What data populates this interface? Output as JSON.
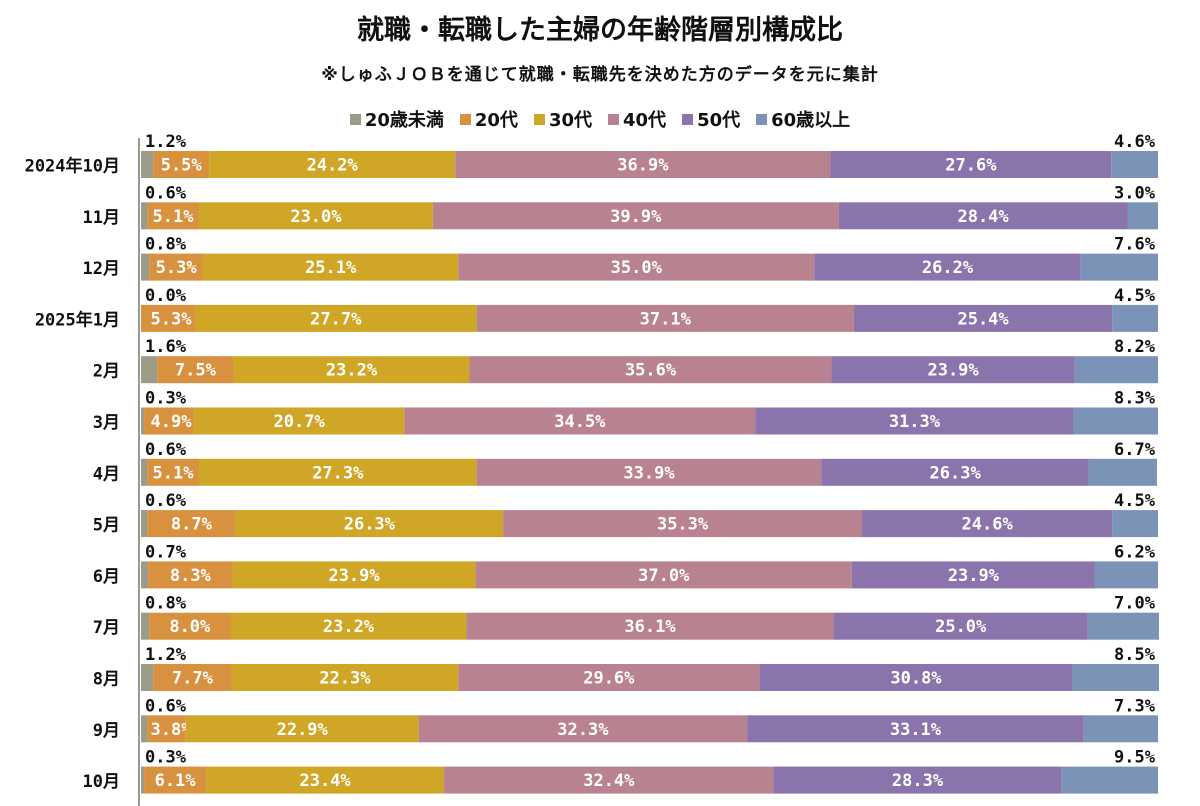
{
  "chart_data": {
    "type": "bar",
    "orientation": "horizontal",
    "stacked": true,
    "percent": true,
    "title": "就職・転職した主婦の年齢階層別構成比",
    "subtitle": "※しゅふＪＯＢを通じて就職・転職先を決めた方のデータを元に集計",
    "legend_position": "top",
    "grid": false,
    "xlim": [
      0,
      100
    ],
    "categories": [
      "2024年10月",
      "11月",
      "12月",
      "2025年1月",
      "2月",
      "3月",
      "4月",
      "5月",
      "6月",
      "7月",
      "8月",
      "9月",
      "10月"
    ],
    "series": [
      {
        "name": "20歳未満",
        "color": "#9b9b88",
        "values": [
          1.2,
          0.6,
          0.8,
          0.0,
          1.6,
          0.3,
          0.6,
          0.6,
          0.7,
          0.8,
          1.2,
          0.6,
          0.3
        ]
      },
      {
        "name": "20代",
        "color": "#d8913f",
        "values": [
          5.5,
          5.1,
          5.3,
          5.3,
          7.5,
          4.9,
          5.1,
          8.7,
          8.3,
          8.0,
          7.7,
          3.8,
          6.1
        ]
      },
      {
        "name": "30代",
        "color": "#cfa626",
        "values": [
          24.2,
          23.0,
          25.1,
          27.7,
          23.2,
          20.7,
          27.3,
          26.3,
          23.9,
          23.2,
          22.3,
          22.9,
          23.4
        ]
      },
      {
        "name": "40代",
        "color": "#b98291",
        "values": [
          36.9,
          39.9,
          35.0,
          37.1,
          35.6,
          34.5,
          33.9,
          35.3,
          37.0,
          36.1,
          29.6,
          32.3,
          32.4
        ]
      },
      {
        "name": "50代",
        "color": "#8b74ac",
        "values": [
          27.6,
          28.4,
          26.2,
          25.4,
          23.9,
          31.3,
          26.3,
          24.6,
          23.9,
          25.0,
          30.8,
          33.1,
          28.3
        ]
      },
      {
        "name": "60歳以上",
        "color": "#7b93b6",
        "values": [
          4.6,
          3.0,
          7.6,
          4.5,
          8.2,
          8.3,
          6.7,
          4.5,
          6.2,
          7.0,
          8.5,
          7.3,
          9.5
        ]
      }
    ]
  }
}
